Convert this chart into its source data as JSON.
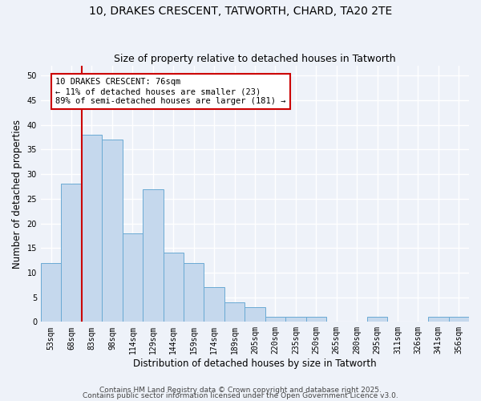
{
  "title1": "10, DRAKES CRESCENT, TATWORTH, CHARD, TA20 2TE",
  "title2": "Size of property relative to detached houses in Tatworth",
  "xlabel": "Distribution of detached houses by size in Tatworth",
  "ylabel": "Number of detached properties",
  "categories": [
    "53sqm",
    "68sqm",
    "83sqm",
    "98sqm",
    "114sqm",
    "129sqm",
    "144sqm",
    "159sqm",
    "174sqm",
    "189sqm",
    "205sqm",
    "220sqm",
    "235sqm",
    "250sqm",
    "265sqm",
    "280sqm",
    "295sqm",
    "311sqm",
    "326sqm",
    "341sqm",
    "356sqm"
  ],
  "values": [
    12,
    28,
    38,
    37,
    18,
    27,
    14,
    12,
    7,
    4,
    3,
    1,
    1,
    1,
    0,
    0,
    1,
    0,
    0,
    1,
    1
  ],
  "bar_color": "#c5d8ed",
  "bar_edge_color": "#6aaad4",
  "bar_edge_width": 0.7,
  "red_line_x": 1.5,
  "red_line_color": "#cc0000",
  "annotation_text": "10 DRAKES CRESCENT: 76sqm\n← 11% of detached houses are smaller (23)\n89% of semi-detached houses are larger (181) →",
  "annotation_box_color": "#ffffff",
  "annotation_box_edgecolor": "#cc0000",
  "ylim": [
    0,
    52
  ],
  "yticks": [
    0,
    5,
    10,
    15,
    20,
    25,
    30,
    35,
    40,
    45,
    50
  ],
  "footer1": "Contains HM Land Registry data © Crown copyright and database right 2025.",
  "footer2": "Contains public sector information licensed under the Open Government Licence v3.0.",
  "bg_color": "#eef2f9",
  "grid_color": "#ffffff",
  "title_fontsize": 10,
  "subtitle_fontsize": 9,
  "axis_label_fontsize": 8.5,
  "tick_fontsize": 7,
  "annotation_fontsize": 7.5,
  "footer_fontsize": 6.5
}
